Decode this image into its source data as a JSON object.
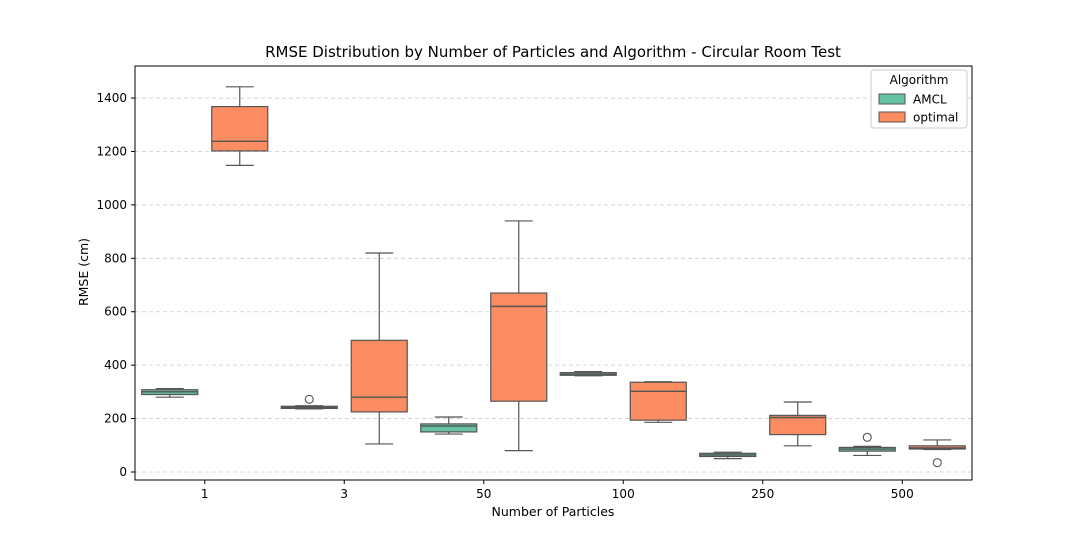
{
  "chart_data": {
    "type": "box",
    "title": "RMSE Distribution by Number of Particles and Algorithm - Circular Room Test",
    "xlabel": "Number of Particles",
    "ylabel": "RMSE (cm)",
    "categories": [
      "1",
      "3",
      "50",
      "100",
      "250",
      "500"
    ],
    "ylim": [
      -30,
      1520
    ],
    "yticks": [
      0,
      200,
      400,
      600,
      800,
      1000,
      1200,
      1400
    ],
    "grid": "y-dashed",
    "legend": {
      "title": "Algorithm",
      "placement": "top-right"
    },
    "series": [
      {
        "name": "AMCL",
        "color": "#66c2a5",
        "boxes": [
          {
            "category": "1",
            "whisker_low": 280,
            "q1": 290,
            "median": 300,
            "q3": 308,
            "whisker_high": 312,
            "outliers": []
          },
          {
            "category": "3",
            "whisker_low": 236,
            "q1": 238,
            "median": 242,
            "q3": 246,
            "whisker_high": 248,
            "outliers": [
              272
            ]
          },
          {
            "category": "50",
            "whisker_low": 142,
            "q1": 150,
            "median": 172,
            "q3": 180,
            "whisker_high": 206,
            "outliers": []
          },
          {
            "category": "100",
            "whisker_low": 360,
            "q1": 362,
            "median": 366,
            "q3": 372,
            "whisker_high": 376,
            "outliers": []
          },
          {
            "category": "250",
            "whisker_low": 50,
            "q1": 58,
            "median": 64,
            "q3": 70,
            "whisker_high": 74,
            "outliers": []
          },
          {
            "category": "500",
            "whisker_low": 62,
            "q1": 78,
            "median": 86,
            "q3": 92,
            "whisker_high": 96,
            "outliers": [
              130
            ]
          }
        ]
      },
      {
        "name": "optimal",
        "color": "#fc8d62",
        "boxes": [
          {
            "category": "1",
            "whisker_low": 1148,
            "q1": 1202,
            "median": 1238,
            "q3": 1368,
            "whisker_high": 1442,
            "outliers": []
          },
          {
            "category": "3",
            "whisker_low": 105,
            "q1": 225,
            "median": 280,
            "q3": 493,
            "whisker_high": 820,
            "outliers": []
          },
          {
            "category": "50",
            "whisker_low": 80,
            "q1": 265,
            "median": 620,
            "q3": 670,
            "whisker_high": 940,
            "outliers": []
          },
          {
            "category": "100",
            "whisker_low": 186,
            "q1": 194,
            "median": 302,
            "q3": 336,
            "whisker_high": 338,
            "outliers": []
          },
          {
            "category": "250",
            "whisker_low": 98,
            "q1": 140,
            "median": 204,
            "q3": 212,
            "whisker_high": 262,
            "outliers": []
          },
          {
            "category": "500",
            "whisker_low": 84,
            "q1": 86,
            "median": 90,
            "q3": 98,
            "whisker_high": 120,
            "outliers": [
              35
            ]
          }
        ]
      }
    ]
  }
}
